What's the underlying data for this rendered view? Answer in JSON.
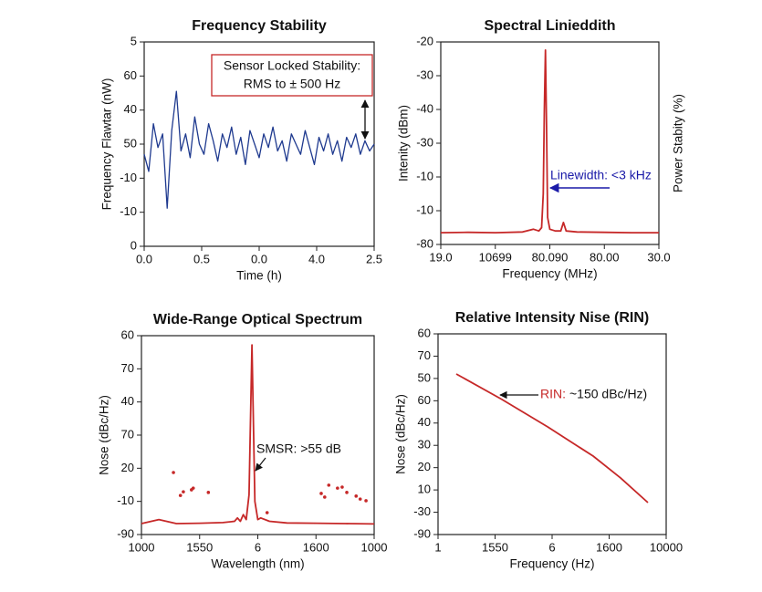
{
  "chart_data": [
    {
      "type": "line",
      "title": "Frequency Stability",
      "xlabel": "Time (h)",
      "ylabel": "Frequency Flawtar (nW)",
      "xlim": [
        0,
        2.5
      ],
      "xticks": [
        {
          "value": 0,
          "label": "0.0"
        },
        {
          "value": 0.625,
          "label": "0.5"
        },
        {
          "value": 1.25,
          "label": "0.0"
        },
        {
          "value": 1.875,
          "label": "4.0"
        },
        2.5
      ],
      "ylim": [
        0,
        60
      ],
      "yticks": [
        0,
        {
          "value": 10,
          "label": "-10"
        },
        {
          "value": 20,
          "label": "-10"
        },
        {
          "value": 30,
          "label": "50"
        },
        40,
        {
          "value": 50,
          "label": "60"
        },
        {
          "value": 60,
          "label": "5"
        }
      ],
      "annotation": [
        "Sensor Locked Stability:",
        "RMS to ± 500 Hz"
      ],
      "series": [
        {
          "color": "#1f3a8f",
          "x": [
            0,
            0.05,
            0.1,
            0.15,
            0.2,
            0.25,
            0.3,
            0.35,
            0.4,
            0.45,
            0.5,
            0.55,
            0.6,
            0.65,
            0.7,
            0.75,
            0.8,
            0.85,
            0.9,
            0.95,
            1.0,
            1.05,
            1.1,
            1.15,
            1.2,
            1.25,
            1.3,
            1.35,
            1.4,
            1.45,
            1.5,
            1.55,
            1.6,
            1.65,
            1.7,
            1.75,
            1.8,
            1.85,
            1.9,
            1.95,
            2.0,
            2.05,
            2.1,
            2.15,
            2.2,
            2.25,
            2.3,
            2.35,
            2.4,
            2.45,
            2.5
          ],
          "values": [
            27,
            22,
            36,
            29,
            33,
            11.2,
            34,
            45.5,
            28,
            33,
            26,
            38,
            30,
            27,
            36,
            31,
            25,
            33,
            29,
            35,
            27,
            32,
            24,
            34,
            30,
            26,
            33,
            29,
            35,
            28,
            31,
            25,
            33,
            30,
            27,
            34,
            29,
            24,
            32,
            28,
            33,
            27,
            31,
            25,
            32,
            29,
            33,
            27,
            31,
            28,
            30
          ]
        }
      ]
    },
    {
      "type": "line",
      "title": "Spectral Linieddith",
      "xlabel": "Frequency (MHz)",
      "ylabel": "Intenity (dBm)",
      "y2label": "Power Stabity (%)",
      "xlim": [
        0,
        4
      ],
      "xticks": [
        {
          "value": 0,
          "label": "19.0"
        },
        {
          "value": 1,
          "label": "10699"
        },
        {
          "value": 2,
          "label": "80.090"
        },
        {
          "value": 3,
          "label": "80.00"
        },
        {
          "value": 4,
          "label": "30.0"
        }
      ],
      "ylim": [
        0,
        6
      ],
      "yticks": [
        {
          "value": 0,
          "label": "-80"
        },
        {
          "value": 1,
          "label": "-10"
        },
        {
          "value": 2,
          "label": "-10"
        },
        {
          "value": 3,
          "label": "-30"
        },
        {
          "value": 4,
          "label": "-40"
        },
        {
          "value": 5,
          "label": "-30"
        },
        {
          "value": 6,
          "label": "-20"
        }
      ],
      "annotation": "Linewidth: <3 kHz",
      "annotation_color": "#1a1aa8",
      "series": [
        {
          "color": "#c62828",
          "x": [
            0,
            0.5,
            1.0,
            1.5,
            1.7,
            1.8,
            1.85,
            1.88,
            1.9,
            1.92,
            1.94,
            1.96,
            2.0,
            2.1,
            2.2,
            2.25,
            2.3,
            2.5,
            3,
            3.5,
            4
          ],
          "values": [
            0.35,
            0.36,
            0.35,
            0.37,
            0.45,
            0.4,
            0.5,
            1.5,
            4.0,
            5.76,
            3.5,
            0.8,
            0.45,
            0.4,
            0.4,
            0.65,
            0.4,
            0.37,
            0.36,
            0.35,
            0.35
          ]
        }
      ]
    },
    {
      "type": "line",
      "title": "Wide-Range Optical Spectrum",
      "xlabel": "Wavelength (nm)",
      "ylabel": "Nose (dBc/Hz)",
      "xlim": [
        0,
        4
      ],
      "xticks": [
        {
          "value": 0,
          "label": "1000"
        },
        {
          "value": 1,
          "label": "1550"
        },
        {
          "value": 2,
          "label": "6"
        },
        {
          "value": 3,
          "label": "1600"
        },
        {
          "value": 4,
          "label": "1000"
        }
      ],
      "ylim": [
        0,
        6
      ],
      "yticks": [
        {
          "value": 0,
          "label": "-90"
        },
        {
          "value": 1,
          "label": "-10"
        },
        {
          "value": 2,
          "label": "20"
        },
        {
          "value": 3,
          "label": "70"
        },
        {
          "value": 4,
          "label": "40"
        },
        {
          "value": 5,
          "label": "70"
        },
        {
          "value": 6,
          "label": "60"
        }
      ],
      "annotation": "SMSR: >55 dB",
      "series": [
        {
          "color": "#c62828",
          "style": "line",
          "x": [
            0,
            0.3,
            0.6,
            1.0,
            1.4,
            1.6,
            1.65,
            1.7,
            1.75,
            1.8,
            1.85,
            1.9,
            1.95,
            2.0,
            2.05,
            2.2,
            2.5,
            3,
            3.5,
            4
          ],
          "values": [
            0.33,
            0.45,
            0.33,
            0.34,
            0.36,
            0.4,
            0.5,
            0.4,
            0.6,
            0.45,
            1.2,
            5.72,
            1.0,
            0.45,
            0.5,
            0.4,
            0.35,
            0.34,
            0.33,
            0.32
          ]
        },
        {
          "color": "#c62828",
          "style": "dots",
          "x": [
            0.55,
            0.67,
            0.72,
            0.86,
            0.89,
            1.15,
            2.16,
            3.09,
            3.15,
            3.22,
            3.37,
            3.45,
            3.53,
            3.69,
            3.76,
            3.86
          ],
          "values": [
            1.87,
            1.18,
            1.29,
            1.35,
            1.4,
            1.27,
            0.66,
            1.24,
            1.13,
            1.49,
            1.4,
            1.43,
            1.27,
            1.16,
            1.07,
            1.02
          ]
        }
      ]
    },
    {
      "type": "line",
      "title": "Relative Intensity Nise (RIN)",
      "xlabel": "Frequency (Hz)",
      "ylabel": "Nose (dBc/Hz)",
      "xlim": [
        0,
        4
      ],
      "xticks": [
        {
          "value": 0,
          "label": "1"
        },
        {
          "value": 1,
          "label": "1550"
        },
        {
          "value": 2,
          "label": "6"
        },
        {
          "value": 3,
          "label": "1600"
        },
        {
          "value": 4,
          "label": "10000"
        }
      ],
      "ylim": [
        0,
        9
      ],
      "yticks": [
        {
          "value": 0,
          "label": "-90"
        },
        {
          "value": 1,
          "label": "-30"
        },
        {
          "value": 2,
          "label": "10"
        },
        {
          "value": 3,
          "label": "20"
        },
        {
          "value": 4,
          "label": "30"
        },
        {
          "value": 5,
          "label": "40"
        },
        {
          "value": 6,
          "label": "60"
        },
        {
          "value": 7,
          "label": "50"
        },
        {
          "value": 8,
          "label": "70"
        },
        {
          "value": 9,
          "label": "60"
        }
      ],
      "annotation_label": "RIN:",
      "annotation": "~150 dBc/Hz)",
      "series": [
        {
          "color": "#c62828",
          "x": [
            0.32,
            1.12,
            1.92,
            2.72,
            3.2,
            3.68
          ],
          "values": [
            7.2,
            6.06,
            4.83,
            3.52,
            2.54,
            1.43
          ]
        }
      ]
    }
  ]
}
